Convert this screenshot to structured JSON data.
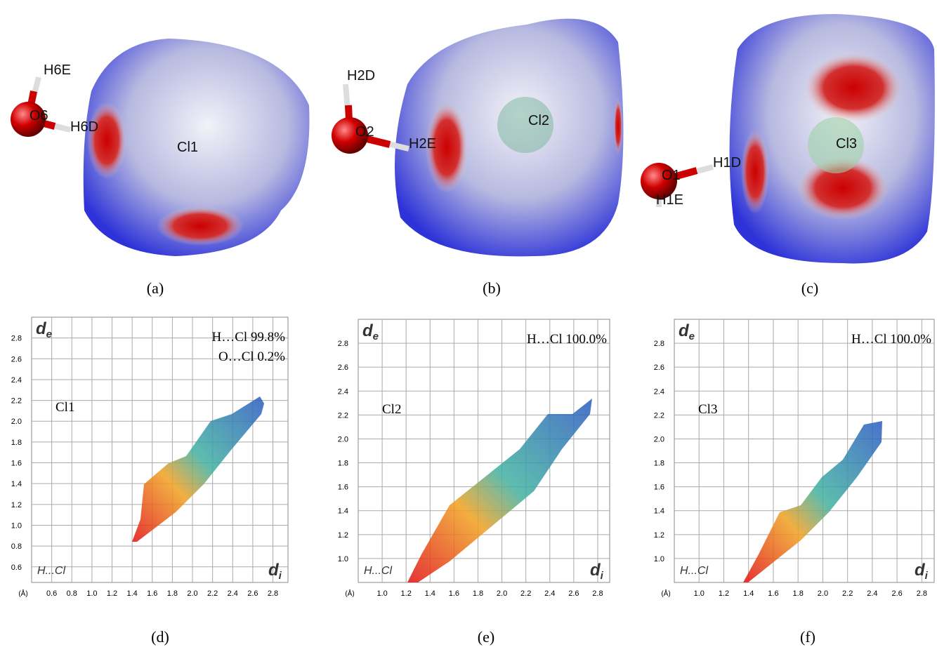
{
  "surfaces": [
    {
      "caption": "(a)",
      "center": "Cl1",
      "atoms": [
        "H6E",
        "O6",
        "H6D"
      ]
    },
    {
      "caption": "(b)",
      "center": "Cl2",
      "atoms": [
        "H2D",
        "O2",
        "H2E"
      ]
    },
    {
      "caption": "(c)",
      "center": "Cl3",
      "atoms": [
        "H1D",
        "O1",
        "H1E"
      ]
    }
  ],
  "chart_data": [
    {
      "type": "fingerprint",
      "caption": "(d)",
      "label": "Cl1",
      "corner_label": "H...Cl",
      "unit_label": "(Å)",
      "xlabel_symbol": "d",
      "xlabel_sub": "i",
      "ylabel_symbol": "d",
      "ylabel_sub": "e",
      "annotations": [
        "H…Cl 99.8%",
        "O…Cl 0.2%"
      ],
      "grid": true,
      "xlim": [
        0.4,
        2.95
      ],
      "ylim": [
        0.45,
        3.0
      ],
      "xticks": [
        0.6,
        0.8,
        {
          "value": 1,
          "label": "1.0"
        },
        1.2,
        1.4,
        1.6,
        1.8,
        {
          "value": 2,
          "label": "2.0"
        },
        2.2,
        2.4,
        2.6,
        2.8
      ],
      "yticks": [
        0.6,
        0.8,
        {
          "value": 1,
          "label": "1.0"
        },
        1.2,
        1.4,
        1.6,
        1.8,
        {
          "value": 2,
          "label": "2.0"
        },
        2.2,
        2.4,
        2.6,
        2.8
      ]
    },
    {
      "type": "fingerprint",
      "caption": "(e)",
      "label": "Cl2",
      "corner_label": "H...Cl",
      "unit_label": "(Å)",
      "xlabel_symbol": "d",
      "xlabel_sub": "i",
      "ylabel_symbol": "d",
      "ylabel_sub": "e",
      "annotations": [
        "H…Cl 100.0%"
      ],
      "grid": true,
      "xlim": [
        0.8,
        2.9
      ],
      "ylim": [
        0.8,
        3.0
      ],
      "xticks": [
        {
          "value": 1,
          "label": "1.0"
        },
        1.2,
        1.4,
        1.6,
        1.8,
        {
          "value": 2,
          "label": "2.0"
        },
        2.2,
        2.4,
        2.6,
        2.8
      ],
      "yticks": [
        {
          "value": 1,
          "label": "1.0"
        },
        1.2,
        1.4,
        1.6,
        1.8,
        {
          "value": 2,
          "label": "2.0"
        },
        2.2,
        2.4,
        2.6,
        2.8
      ]
    },
    {
      "type": "fingerprint",
      "caption": "(f)",
      "label": "Cl3",
      "corner_label": "H...Cl",
      "unit_label": "(Å)",
      "xlabel_symbol": "d",
      "xlabel_sub": "i",
      "ylabel_symbol": "d",
      "ylabel_sub": "e",
      "annotations": [
        "H…Cl 100.0%"
      ],
      "grid": true,
      "xlim": [
        0.8,
        2.9
      ],
      "ylim": [
        0.8,
        3.0
      ],
      "xticks": [
        {
          "value": 1,
          "label": "1.0"
        },
        1.2,
        1.4,
        1.6,
        1.8,
        {
          "value": 2,
          "label": "2.0"
        },
        2.2,
        2.4,
        2.6,
        2.8
      ],
      "yticks": [
        {
          "value": 1,
          "label": "1.0"
        },
        1.2,
        1.4,
        1.6,
        1.8,
        {
          "value": 2,
          "label": "2.0"
        },
        2.2,
        2.4,
        2.6,
        2.8
      ]
    }
  ]
}
